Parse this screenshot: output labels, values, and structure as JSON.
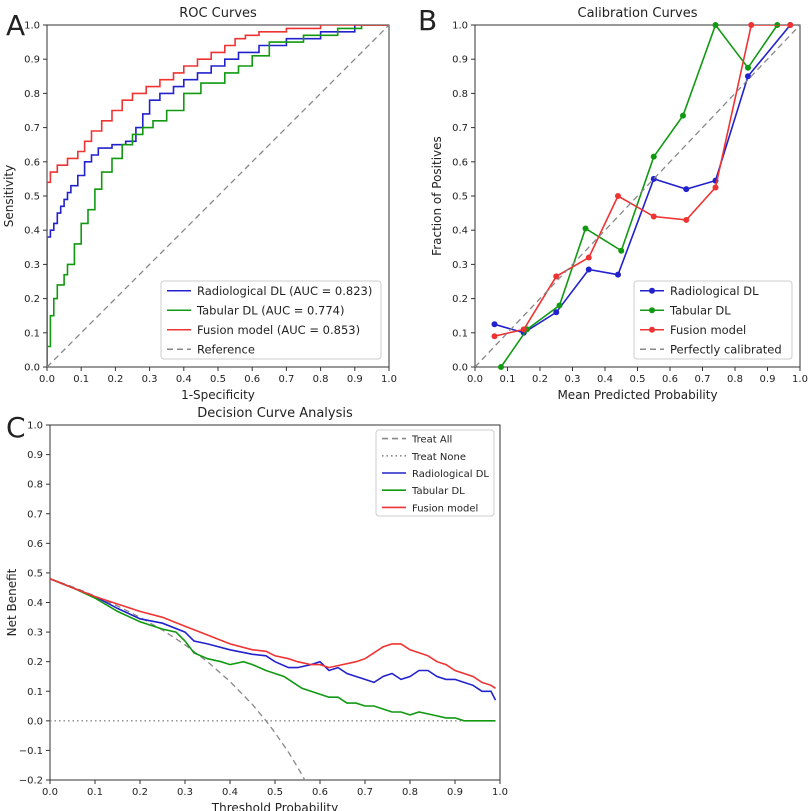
{
  "panels": {
    "A": {
      "letter": "A"
    },
    "B": {
      "letter": "B"
    },
    "C": {
      "letter": "C"
    }
  },
  "colors": {
    "radiological": "#2222cc",
    "tabular": "#119911",
    "fusion": "#ee3333",
    "reference": "#888888"
  },
  "chart_data": [
    {
      "id": "roc",
      "type": "line",
      "title": "ROC Curves",
      "xlabel": "1-Specificity",
      "ylabel": "Sensitivity",
      "xlim": [
        0,
        1
      ],
      "ylim": [
        0,
        1
      ],
      "xticks": [
        "0.0",
        "0.1",
        "0.2",
        "0.3",
        "0.4",
        "0.5",
        "0.6",
        "0.7",
        "0.8",
        "0.9",
        "1.0"
      ],
      "yticks": [
        "0.0",
        "0.1",
        "0.2",
        "0.3",
        "0.4",
        "0.5",
        "0.6",
        "0.7",
        "0.8",
        "0.9",
        "1.0"
      ],
      "legend_position": "bottom-right",
      "series": [
        {
          "name": "Radiological DL (AUC = 0.823)",
          "color_key": "radiological",
          "dash": "solid",
          "x": [
            0,
            0,
            0.01,
            0.01,
            0.02,
            0.02,
            0.03,
            0.03,
            0.04,
            0.04,
            0.05,
            0.05,
            0.06,
            0.06,
            0.07,
            0.07,
            0.09,
            0.09,
            0.11,
            0.11,
            0.13,
            0.13,
            0.15,
            0.15,
            0.19,
            0.19,
            0.23,
            0.23,
            0.26,
            0.26,
            0.28,
            0.28,
            0.3,
            0.3,
            0.33,
            0.33,
            0.37,
            0.37,
            0.4,
            0.4,
            0.44,
            0.44,
            0.48,
            0.48,
            0.52,
            0.52,
            0.56,
            0.56,
            0.62,
            0.62,
            0.7,
            0.7,
            0.8,
            0.8,
            0.9,
            0.9,
            1.0
          ],
          "y": [
            0,
            0.38,
            0.38,
            0.4,
            0.4,
            0.42,
            0.42,
            0.45,
            0.45,
            0.47,
            0.47,
            0.49,
            0.49,
            0.51,
            0.51,
            0.53,
            0.53,
            0.56,
            0.56,
            0.6,
            0.6,
            0.62,
            0.62,
            0.64,
            0.64,
            0.65,
            0.65,
            0.66,
            0.66,
            0.7,
            0.7,
            0.74,
            0.74,
            0.78,
            0.78,
            0.8,
            0.8,
            0.82,
            0.82,
            0.84,
            0.84,
            0.86,
            0.86,
            0.88,
            0.88,
            0.9,
            0.9,
            0.92,
            0.92,
            0.94,
            0.94,
            0.96,
            0.96,
            0.98,
            0.98,
            1.0,
            1.0
          ]
        },
        {
          "name": "Tabular DL (AUC = 0.774)",
          "color_key": "tabular",
          "dash": "solid",
          "x": [
            0,
            0,
            0.01,
            0.01,
            0.02,
            0.02,
            0.03,
            0.03,
            0.05,
            0.05,
            0.06,
            0.06,
            0.08,
            0.08,
            0.1,
            0.1,
            0.12,
            0.12,
            0.14,
            0.14,
            0.16,
            0.16,
            0.19,
            0.19,
            0.22,
            0.22,
            0.25,
            0.25,
            0.28,
            0.28,
            0.31,
            0.31,
            0.35,
            0.35,
            0.4,
            0.4,
            0.45,
            0.45,
            0.52,
            0.52,
            0.56,
            0.56,
            0.6,
            0.6,
            0.65,
            0.65,
            0.75,
            0.75,
            0.85,
            0.85,
            0.92,
            0.92,
            1.0
          ],
          "y": [
            0,
            0.06,
            0.06,
            0.15,
            0.15,
            0.2,
            0.2,
            0.24,
            0.24,
            0.27,
            0.27,
            0.3,
            0.3,
            0.36,
            0.36,
            0.42,
            0.42,
            0.46,
            0.46,
            0.52,
            0.52,
            0.57,
            0.57,
            0.61,
            0.61,
            0.65,
            0.65,
            0.68,
            0.68,
            0.7,
            0.7,
            0.72,
            0.72,
            0.75,
            0.75,
            0.8,
            0.8,
            0.83,
            0.83,
            0.86,
            0.86,
            0.88,
            0.88,
            0.91,
            0.91,
            0.95,
            0.95,
            0.97,
            0.97,
            0.99,
            0.99,
            1.0,
            1.0
          ]
        },
        {
          "name": "Fusion model (AUC = 0.853)",
          "color_key": "fusion",
          "dash": "solid",
          "x": [
            0,
            0,
            0.01,
            0.01,
            0.03,
            0.03,
            0.06,
            0.06,
            0.09,
            0.09,
            0.11,
            0.11,
            0.13,
            0.13,
            0.16,
            0.16,
            0.19,
            0.19,
            0.22,
            0.22,
            0.25,
            0.25,
            0.29,
            0.29,
            0.33,
            0.33,
            0.37,
            0.37,
            0.4,
            0.4,
            0.44,
            0.44,
            0.48,
            0.48,
            0.52,
            0.52,
            0.55,
            0.55,
            0.58,
            0.58,
            0.62,
            0.62,
            0.7,
            0.7,
            0.8,
            0.8,
            0.9,
            0.9,
            1.0
          ],
          "y": [
            0,
            0.54,
            0.54,
            0.57,
            0.57,
            0.59,
            0.59,
            0.61,
            0.61,
            0.63,
            0.63,
            0.66,
            0.66,
            0.69,
            0.69,
            0.72,
            0.72,
            0.75,
            0.75,
            0.78,
            0.78,
            0.8,
            0.8,
            0.82,
            0.82,
            0.84,
            0.84,
            0.86,
            0.86,
            0.88,
            0.88,
            0.9,
            0.9,
            0.92,
            0.92,
            0.94,
            0.94,
            0.96,
            0.96,
            0.97,
            0.97,
            0.98,
            0.98,
            0.99,
            0.99,
            1.0,
            1.0,
            1.0,
            1.0
          ]
        },
        {
          "name": "Reference",
          "color_key": "reference",
          "dash": "dashed",
          "x": [
            0,
            1
          ],
          "y": [
            0,
            1
          ]
        }
      ]
    },
    {
      "id": "calibration",
      "type": "line",
      "title": "Calibration Curves",
      "xlabel": "Mean Predicted Probability",
      "ylabel": "Fraction of Positives",
      "xlim": [
        0,
        1
      ],
      "ylim": [
        0,
        1
      ],
      "xticks": [
        "0.0",
        "0.1",
        "0.2",
        "0.3",
        "0.4",
        "0.5",
        "0.6",
        "0.7",
        "0.8",
        "0.9",
        "1.0"
      ],
      "yticks": [
        "0.0",
        "0.1",
        "0.2",
        "0.3",
        "0.4",
        "0.5",
        "0.6",
        "0.7",
        "0.8",
        "0.9",
        "1.0"
      ],
      "legend_position": "bottom-right",
      "series": [
        {
          "name": "Radiological DL",
          "color_key": "radiological",
          "dash": "solid",
          "markers": true,
          "x": [
            0.06,
            0.15,
            0.25,
            0.35,
            0.44,
            0.55,
            0.65,
            0.74,
            0.84,
            0.97
          ],
          "y": [
            0.125,
            0.1,
            0.16,
            0.285,
            0.27,
            0.55,
            0.52,
            0.545,
            0.85,
            1.0
          ]
        },
        {
          "name": "Tabular DL",
          "color_key": "tabular",
          "dash": "solid",
          "markers": true,
          "x": [
            0.08,
            0.16,
            0.26,
            0.34,
            0.45,
            0.55,
            0.64,
            0.74,
            0.84,
            0.93
          ],
          "y": [
            0.0,
            0.11,
            0.18,
            0.405,
            0.34,
            0.615,
            0.735,
            1.0,
            0.875,
            1.0
          ]
        },
        {
          "name": "Fusion model",
          "color_key": "fusion",
          "dash": "solid",
          "markers": true,
          "x": [
            0.06,
            0.15,
            0.25,
            0.35,
            0.44,
            0.55,
            0.65,
            0.74,
            0.85,
            0.97
          ],
          "y": [
            0.09,
            0.11,
            0.265,
            0.32,
            0.5,
            0.44,
            0.43,
            0.525,
            1.0,
            1.0
          ]
        },
        {
          "name": "Perfectly calibrated",
          "color_key": "reference",
          "dash": "dashed",
          "markers": false,
          "x": [
            0,
            1
          ],
          "y": [
            0,
            1
          ]
        }
      ]
    },
    {
      "id": "dca",
      "type": "line",
      "title": "Decision Curve Analysis",
      "xlabel": "Threshold Probability",
      "ylabel": "Net Benefit",
      "xlim": [
        0,
        1
      ],
      "ylim": [
        -0.2,
        1.0
      ],
      "xticks": [
        "0.0",
        "0.1",
        "0.2",
        "0.3",
        "0.4",
        "0.5",
        "0.6",
        "0.7",
        "0.8",
        "0.9",
        "1.0"
      ],
      "yticks": [
        "−0.2",
        "−0.1",
        "0.0",
        "0.1",
        "0.2",
        "0.3",
        "0.4",
        "0.5",
        "0.6",
        "0.7",
        "0.8",
        "0.9",
        "1.0"
      ],
      "legend_position": "top-right",
      "series": [
        {
          "name": "Treat All",
          "color_key": "reference",
          "dash": "dashed",
          "x": [
            0.0,
            0.05,
            0.1,
            0.15,
            0.2,
            0.25,
            0.3,
            0.35,
            0.4,
            0.45,
            0.48,
            0.5,
            0.53,
            0.55,
            0.57
          ],
          "y": [
            0.48,
            0.453,
            0.422,
            0.388,
            0.35,
            0.307,
            0.257,
            0.2,
            0.133,
            0.055,
            0.0,
            -0.04,
            -0.106,
            -0.156,
            -0.21
          ]
        },
        {
          "name": "Treat None",
          "color_key": "reference",
          "dash": "dotted",
          "x": [
            0.0,
            0.99
          ],
          "y": [
            0.0,
            0.0
          ]
        },
        {
          "name": "Radiological DL",
          "color_key": "radiological",
          "dash": "solid",
          "x": [
            0.0,
            0.05,
            0.1,
            0.15,
            0.2,
            0.25,
            0.3,
            0.32,
            0.35,
            0.4,
            0.45,
            0.48,
            0.5,
            0.53,
            0.55,
            0.58,
            0.6,
            0.62,
            0.64,
            0.66,
            0.68,
            0.7,
            0.72,
            0.74,
            0.76,
            0.78,
            0.8,
            0.82,
            0.84,
            0.86,
            0.88,
            0.9,
            0.92,
            0.94,
            0.96,
            0.98,
            0.99
          ],
          "y": [
            0.48,
            0.45,
            0.42,
            0.38,
            0.345,
            0.33,
            0.3,
            0.27,
            0.26,
            0.24,
            0.225,
            0.22,
            0.2,
            0.18,
            0.18,
            0.19,
            0.2,
            0.17,
            0.18,
            0.16,
            0.15,
            0.14,
            0.13,
            0.15,
            0.16,
            0.14,
            0.15,
            0.17,
            0.17,
            0.15,
            0.14,
            0.14,
            0.13,
            0.12,
            0.1,
            0.1,
            0.07
          ]
        },
        {
          "name": "Tabular DL",
          "color_key": "tabular",
          "dash": "solid",
          "x": [
            0.0,
            0.05,
            0.1,
            0.15,
            0.2,
            0.25,
            0.28,
            0.3,
            0.32,
            0.35,
            0.38,
            0.4,
            0.43,
            0.45,
            0.48,
            0.5,
            0.52,
            0.54,
            0.56,
            0.58,
            0.6,
            0.62,
            0.64,
            0.66,
            0.68,
            0.7,
            0.72,
            0.74,
            0.76,
            0.78,
            0.8,
            0.82,
            0.85,
            0.88,
            0.9,
            0.92,
            0.95,
            0.99
          ],
          "y": [
            0.48,
            0.45,
            0.415,
            0.37,
            0.335,
            0.31,
            0.3,
            0.27,
            0.23,
            0.21,
            0.2,
            0.19,
            0.2,
            0.19,
            0.17,
            0.16,
            0.15,
            0.13,
            0.11,
            0.1,
            0.09,
            0.08,
            0.08,
            0.06,
            0.06,
            0.05,
            0.05,
            0.04,
            0.03,
            0.03,
            0.02,
            0.03,
            0.02,
            0.01,
            0.01,
            0.0,
            0.0,
            0.0
          ]
        },
        {
          "name": "Fusion model",
          "color_key": "fusion",
          "dash": "solid",
          "x": [
            0.0,
            0.05,
            0.1,
            0.15,
            0.2,
            0.25,
            0.3,
            0.35,
            0.4,
            0.45,
            0.48,
            0.5,
            0.53,
            0.55,
            0.58,
            0.6,
            0.62,
            0.65,
            0.68,
            0.7,
            0.72,
            0.74,
            0.76,
            0.78,
            0.8,
            0.82,
            0.84,
            0.86,
            0.88,
            0.9,
            0.92,
            0.94,
            0.96,
            0.98,
            0.99
          ],
          "y": [
            0.48,
            0.45,
            0.42,
            0.395,
            0.37,
            0.35,
            0.32,
            0.29,
            0.26,
            0.24,
            0.235,
            0.22,
            0.21,
            0.2,
            0.19,
            0.19,
            0.18,
            0.19,
            0.2,
            0.21,
            0.23,
            0.25,
            0.26,
            0.26,
            0.24,
            0.23,
            0.22,
            0.2,
            0.19,
            0.17,
            0.16,
            0.15,
            0.13,
            0.12,
            0.11
          ]
        }
      ]
    }
  ]
}
